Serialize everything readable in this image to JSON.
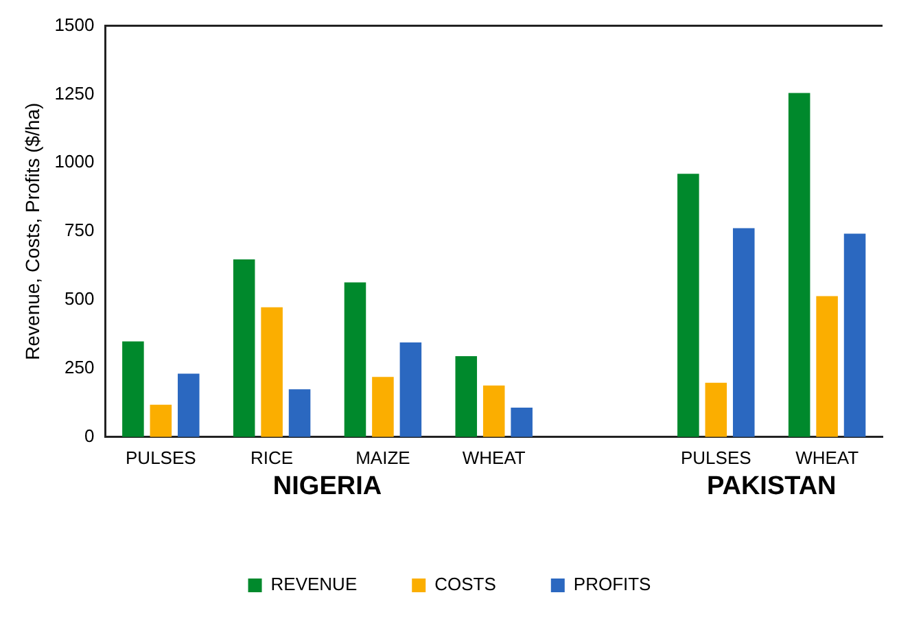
{
  "chart_data": {
    "type": "bar",
    "ylabel": "Revenue, Costs, Profits ($/ha)",
    "categories": [
      "PULSES",
      "RICE",
      "MAIZE",
      "WHEAT",
      null,
      "PULSES",
      "WHEAT"
    ],
    "series": [
      {
        "name": "REVENUE",
        "color": "#00892c",
        "values": [
          349,
          648,
          564,
          295,
          null,
          960,
          1255
        ]
      },
      {
        "name": "COSTS",
        "color": "#fbae00",
        "values": [
          118,
          473,
          219,
          188,
          null,
          198,
          514
        ]
      },
      {
        "name": "PROFITS",
        "color": "#2b68c0",
        "values": [
          231,
          174,
          345,
          107,
          null,
          762,
          742
        ]
      }
    ],
    "ylim": [
      0,
      1500
    ],
    "yticks": [
      0,
      250,
      500,
      750,
      1000,
      1250,
      1500
    ],
    "annotations": [
      "NIGERIA",
      "PAKISTAN"
    ],
    "grid": false,
    "legend": "bottom"
  }
}
